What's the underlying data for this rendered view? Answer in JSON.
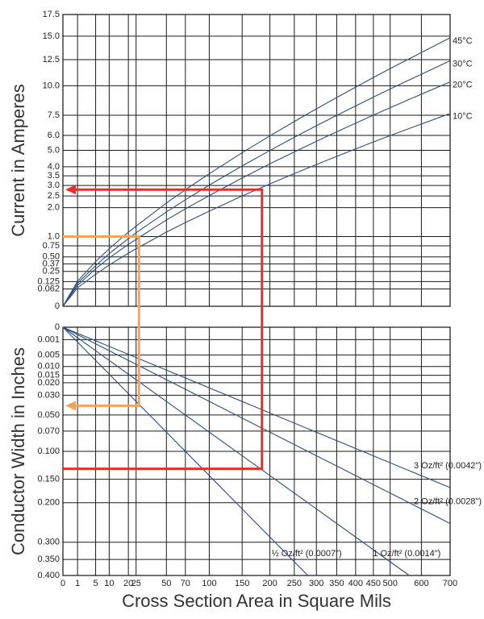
{
  "chart_data": [
    {
      "type": "line",
      "ylabel": "Current in Amperes",
      "xscale": "sqrt",
      "yscale": "sqrt",
      "xlim": [
        0,
        700
      ],
      "ylim": [
        0,
        17.5
      ],
      "yinvert": false,
      "grid": true,
      "yticks": [
        0,
        0.062,
        0.125,
        0.25,
        0.37,
        {
          "value": 0.5,
          "label": "0.50"
        },
        0.75,
        {
          "value": 1,
          "label": "1.0"
        },
        {
          "value": 2,
          "label": "2.0"
        },
        2.5,
        {
          "value": 3,
          "label": "3.0"
        },
        3.5,
        {
          "value": 4,
          "label": "4.0"
        },
        {
          "value": 5,
          "label": "5.0"
        },
        {
          "value": 6,
          "label": "6.0"
        },
        7.5,
        {
          "value": 10,
          "label": "10.0"
        },
        12.5,
        {
          "value": 15,
          "label": "15.0"
        },
        17.5
      ],
      "series": [
        {
          "name": "45°C",
          "color": "#2d4f7c",
          "x": [
            0,
            1,
            5,
            10,
            20,
            25,
            50,
            70,
            100,
            150,
            200,
            250,
            300,
            350,
            400,
            450,
            500,
            600,
            700
          ],
          "values": [
            0,
            0.13,
            0.41,
            0.68,
            1.13,
            1.32,
            2.19,
            2.79,
            3.61,
            4.85,
            5.97,
            7.02,
            8.01,
            8.96,
            9.87,
            10.76,
            11.61,
            13.24,
            14.82
          ]
        },
        {
          "name": "30°C",
          "color": "#2d4f7c",
          "x": [
            0,
            1,
            5,
            10,
            20,
            25,
            50,
            70,
            100,
            150,
            200,
            250,
            300,
            350,
            400,
            450,
            500,
            600,
            700
          ],
          "values": [
            0,
            0.11,
            0.34,
            0.57,
            0.94,
            1.11,
            1.83,
            2.33,
            3.02,
            4.05,
            4.99,
            5.87,
            6.7,
            7.49,
            8.25,
            8.99,
            9.71,
            11.07,
            12.39
          ]
        },
        {
          "name": "20°C",
          "color": "#2d4f7c",
          "x": [
            0,
            1,
            5,
            10,
            20,
            25,
            50,
            70,
            100,
            150,
            200,
            250,
            300,
            350,
            400,
            450,
            500,
            600,
            700
          ],
          "values": [
            0,
            0.09,
            0.29,
            0.48,
            0.79,
            0.92,
            1.53,
            1.95,
            2.52,
            3.38,
            4.17,
            4.9,
            5.59,
            6.26,
            6.89,
            7.51,
            8.11,
            9.25,
            10.35
          ]
        },
        {
          "name": "10°C",
          "color": "#2d4f7c",
          "x": [
            0,
            1,
            5,
            10,
            20,
            25,
            50,
            70,
            100,
            150,
            200,
            250,
            300,
            350,
            400,
            450,
            500,
            600,
            700
          ],
          "values": [
            0,
            0.07,
            0.21,
            0.35,
            0.58,
            0.68,
            1.13,
            1.44,
            1.86,
            2.5,
            3.08,
            3.62,
            4.13,
            4.62,
            5.09,
            5.55,
            5.99,
            6.83,
            7.64
          ]
        }
      ]
    },
    {
      "type": "line",
      "ylabel": "Conductor Width in Inches",
      "xlabel": "Cross Section Area in Square Mils",
      "xscale": "sqrt",
      "yscale": "sqrt",
      "xlim": [
        0,
        700
      ],
      "ylim": [
        0,
        0.4
      ],
      "yinvert": true,
      "grid": true,
      "xticks": [
        0,
        1,
        5,
        10,
        20,
        25,
        50,
        70,
        100,
        150,
        200,
        250,
        300,
        350,
        400,
        450,
        500,
        600,
        700
      ],
      "yticks": [
        0,
        {
          "value": 0.001,
          "label": "0.001"
        },
        {
          "value": 0.005,
          "label": "0.005"
        },
        {
          "value": 0.01,
          "label": "0.010"
        },
        {
          "value": 0.015,
          "label": "0.015"
        },
        {
          "value": 0.02,
          "label": "0.020"
        },
        {
          "value": 0.03,
          "label": "0.030"
        },
        {
          "value": 0.05,
          "label": "0.050"
        },
        {
          "value": 0.07,
          "label": "0.070"
        },
        {
          "value": 0.1,
          "label": "0.100"
        },
        {
          "value": 0.15,
          "label": "0.150"
        },
        {
          "value": 0.2,
          "label": "0.200"
        },
        {
          "value": 0.3,
          "label": "0.300"
        },
        {
          "value": 0.35,
          "label": "0.350"
        },
        {
          "value": 0.4,
          "label": "0.400"
        }
      ],
      "series": [
        {
          "name": "3 Oz/ft² (0.0042\")",
          "color": "#2d4f7c",
          "x": [
            0,
            700
          ],
          "values": [
            0,
            0.167
          ]
        },
        {
          "name": "2 Oz/ft² (0.0028\")",
          "color": "#2d4f7c",
          "x": [
            0,
            700
          ],
          "values": [
            0,
            0.25
          ]
        },
        {
          "name": "1 Oz/ft² (0.0014\")",
          "color": "#2d4f7c",
          "x": [
            0,
            560
          ],
          "values": [
            0,
            0.4
          ]
        },
        {
          "name": "½ Oz/ft² (0.0007\")",
          "color": "#2d4f7c",
          "x": [
            0,
            280
          ],
          "values": [
            0,
            0.4
          ]
        }
      ]
    }
  ],
  "guides": [
    {
      "color": "#e0312f",
      "area": 185,
      "current": 2.8,
      "width": 0.13,
      "arrow": "current"
    },
    {
      "color": "#f2a35e",
      "area": 27,
      "current": 1,
      "width": 0.04,
      "arrow": "width"
    }
  ]
}
